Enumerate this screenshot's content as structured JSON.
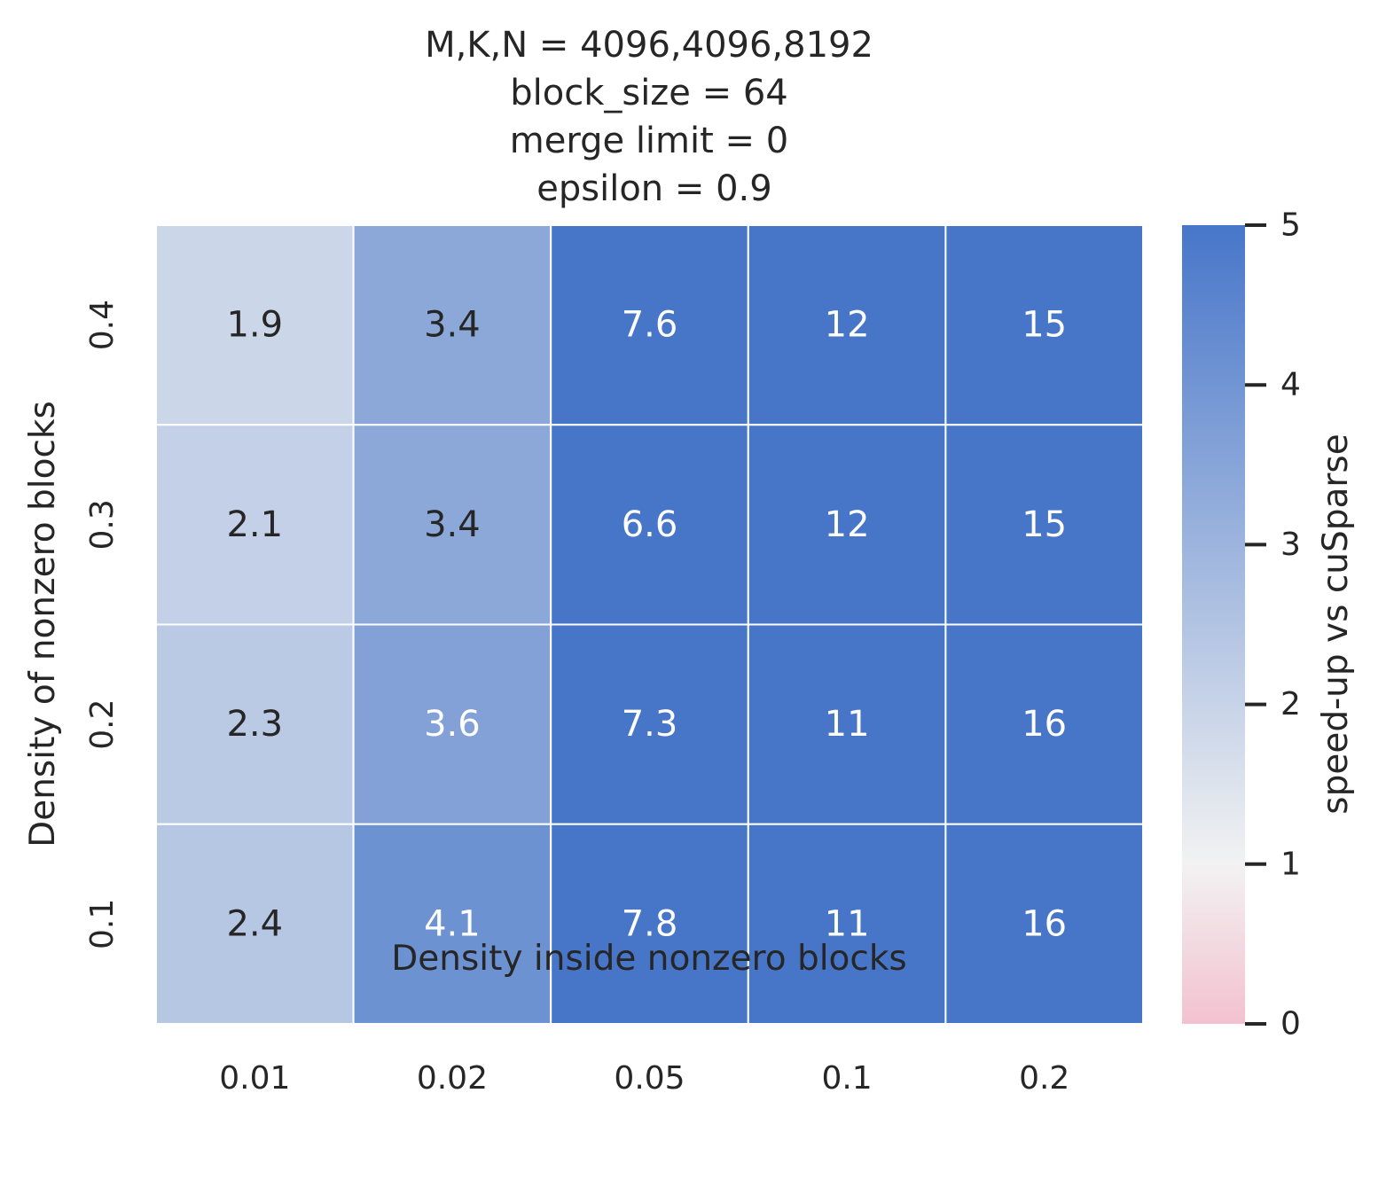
{
  "chart_data": {
    "type": "heatmap",
    "title_lines": [
      "M,K,N = 4096,4096,8192",
      "block_size = 64",
      "merge limit = 0",
      "epsilon = 0.9"
    ],
    "xlabel": "Density inside nonzero blocks",
    "ylabel": "Density of nonzero blocks",
    "x_categories": [
      "0.01",
      "0.02",
      "0.05",
      "0.1",
      "0.2"
    ],
    "y_categories": [
      "0.4",
      "0.3",
      "0.2",
      "0.1"
    ],
    "values": [
      [
        1.9,
        3.4,
        7.6,
        12,
        15
      ],
      [
        2.1,
        3.4,
        6.6,
        12,
        15
      ],
      [
        2.3,
        3.6,
        7.3,
        11,
        16
      ],
      [
        2.4,
        4.1,
        7.8,
        11,
        16
      ]
    ],
    "cell_labels": [
      [
        "1.9",
        "3.4",
        "7.6",
        "12",
        "15"
      ],
      [
        "2.1",
        "3.4",
        "6.6",
        "12",
        "15"
      ],
      [
        "2.3",
        "3.6",
        "7.3",
        "11",
        "16"
      ],
      [
        "2.4",
        "4.1",
        "7.8",
        "11",
        "16"
      ]
    ],
    "colorbar": {
      "label": "speed-up vs cuSparse",
      "range": [
        0,
        5
      ],
      "center": 1,
      "ticks": [
        "0",
        "1",
        "2",
        "3",
        "4",
        "5"
      ],
      "low_color": "#f3c1d0",
      "mid_color": "#f2f2f2",
      "high_color": "#4776c9"
    }
  }
}
